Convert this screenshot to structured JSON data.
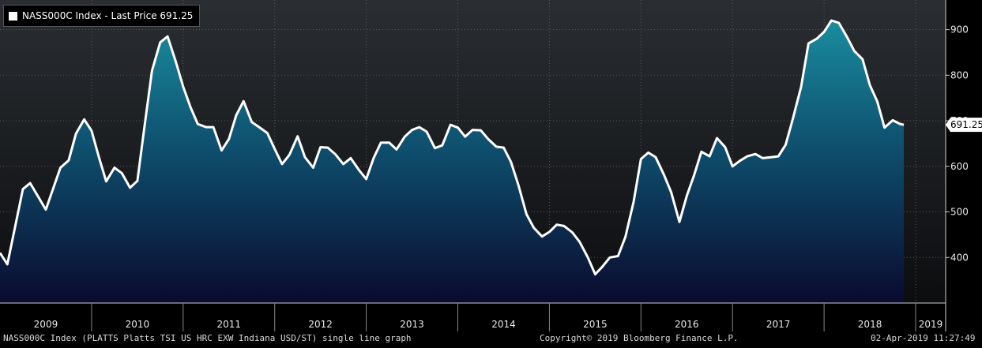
{
  "legend": {
    "label": "NASS000C Index - Last Price 691.25"
  },
  "footer": {
    "left": "NASS000C Index (PLATTS Platts TSI US HRC EXW Indiana USD/ST) single line graph",
    "center": "Copyright© 2019 Bloomberg Finance L.P.",
    "right": "02-Apr-2019 11:27:49"
  },
  "colors": {
    "background": "#000000",
    "plot_background": "#1a1d20",
    "line": "#ffffff",
    "fill_top": "#1a8c9e",
    "fill_bottom": "#0a0a2e",
    "grid": "#5a5a5a"
  },
  "chart_data": {
    "type": "area",
    "title": "",
    "xlabel": "",
    "ylabel": "",
    "ylim": [
      300,
      965
    ],
    "xlim": [
      2009.0,
      2019.25
    ],
    "y_ticks": [
      400,
      500,
      600,
      700,
      800,
      900
    ],
    "x_tick_labels": [
      "2009",
      "2010",
      "2011",
      "2012",
      "2013",
      "2014",
      "2015",
      "2016",
      "2017",
      "2018",
      "2019"
    ],
    "grid": true,
    "legend_position": "top-left",
    "last_price": {
      "value": 691.25,
      "label": "691.25"
    },
    "series": [
      {
        "values": [
          [
            2009.0,
            410
          ],
          [
            2009.08,
            385
          ],
          [
            2009.25,
            550
          ],
          [
            2009.33,
            563
          ],
          [
            2009.5,
            505
          ],
          [
            2009.66,
            597
          ],
          [
            2009.75,
            613
          ],
          [
            2009.83,
            672
          ],
          [
            2009.92,
            703
          ],
          [
            2010.0,
            678
          ],
          [
            2010.08,
            620
          ],
          [
            2010.16,
            567
          ],
          [
            2010.25,
            597
          ],
          [
            2010.33,
            585
          ],
          [
            2010.42,
            553
          ],
          [
            2010.5,
            568
          ],
          [
            2010.58,
            690
          ],
          [
            2010.66,
            810
          ],
          [
            2010.75,
            872
          ],
          [
            2010.83,
            885
          ],
          [
            2010.92,
            830
          ],
          [
            2011.0,
            775
          ],
          [
            2011.08,
            730
          ],
          [
            2011.16,
            693
          ],
          [
            2011.25,
            686
          ],
          [
            2011.33,
            686
          ],
          [
            2011.42,
            635
          ],
          [
            2011.5,
            660
          ],
          [
            2011.58,
            712
          ],
          [
            2011.66,
            743
          ],
          [
            2011.75,
            697
          ],
          [
            2011.83,
            686
          ],
          [
            2011.92,
            673
          ],
          [
            2012.0,
            638
          ],
          [
            2012.08,
            605
          ],
          [
            2012.16,
            625
          ],
          [
            2012.25,
            666
          ],
          [
            2012.33,
            620
          ],
          [
            2012.42,
            597
          ],
          [
            2012.5,
            642
          ],
          [
            2012.58,
            641
          ],
          [
            2012.66,
            627
          ],
          [
            2012.75,
            605
          ],
          [
            2012.83,
            618
          ],
          [
            2012.92,
            592
          ],
          [
            2013.0,
            572
          ],
          [
            2013.08,
            618
          ],
          [
            2013.16,
            652
          ],
          [
            2013.25,
            652
          ],
          [
            2013.33,
            637
          ],
          [
            2013.42,
            665
          ],
          [
            2013.5,
            680
          ],
          [
            2013.58,
            686
          ],
          [
            2013.66,
            676
          ],
          [
            2013.75,
            640
          ],
          [
            2013.83,
            646
          ],
          [
            2013.92,
            691
          ],
          [
            2014.0,
            685
          ],
          [
            2014.08,
            665
          ],
          [
            2014.16,
            680
          ],
          [
            2014.25,
            679
          ],
          [
            2014.33,
            660
          ],
          [
            2014.42,
            643
          ],
          [
            2014.5,
            641
          ],
          [
            2014.58,
            610
          ],
          [
            2014.66,
            560
          ],
          [
            2014.75,
            495
          ],
          [
            2014.83,
            465
          ],
          [
            2014.92,
            446
          ],
          [
            2015.0,
            456
          ],
          [
            2015.08,
            472
          ],
          [
            2015.16,
            469
          ],
          [
            2015.25,
            455
          ],
          [
            2015.33,
            434
          ],
          [
            2015.42,
            400
          ],
          [
            2015.5,
            363
          ],
          [
            2015.58,
            380
          ],
          [
            2015.66,
            400
          ],
          [
            2015.75,
            403
          ],
          [
            2015.83,
            445
          ],
          [
            2015.92,
            522
          ],
          [
            2016.0,
            616
          ],
          [
            2016.08,
            630
          ],
          [
            2016.16,
            620
          ],
          [
            2016.25,
            582
          ],
          [
            2016.33,
            543
          ],
          [
            2016.42,
            478
          ],
          [
            2016.5,
            535
          ],
          [
            2016.58,
            580
          ],
          [
            2016.66,
            632
          ],
          [
            2016.75,
            622
          ],
          [
            2016.83,
            662
          ],
          [
            2016.92,
            642
          ],
          [
            2017.0,
            600
          ],
          [
            2017.08,
            612
          ],
          [
            2017.16,
            622
          ],
          [
            2017.25,
            627
          ],
          [
            2017.33,
            618
          ],
          [
            2017.42,
            620
          ],
          [
            2017.5,
            622
          ],
          [
            2017.58,
            647
          ],
          [
            2017.66,
            705
          ],
          [
            2017.75,
            775
          ],
          [
            2017.83,
            870
          ],
          [
            2017.92,
            880
          ],
          [
            2018.0,
            895
          ],
          [
            2018.08,
            920
          ],
          [
            2018.16,
            915
          ],
          [
            2018.25,
            884
          ],
          [
            2018.33,
            853
          ],
          [
            2018.42,
            835
          ],
          [
            2018.5,
            778
          ],
          [
            2018.58,
            743
          ],
          [
            2018.66,
            685
          ],
          [
            2018.75,
            701
          ],
          [
            2018.83,
            693
          ],
          [
            2018.87,
            691.25
          ]
        ]
      }
    ]
  }
}
